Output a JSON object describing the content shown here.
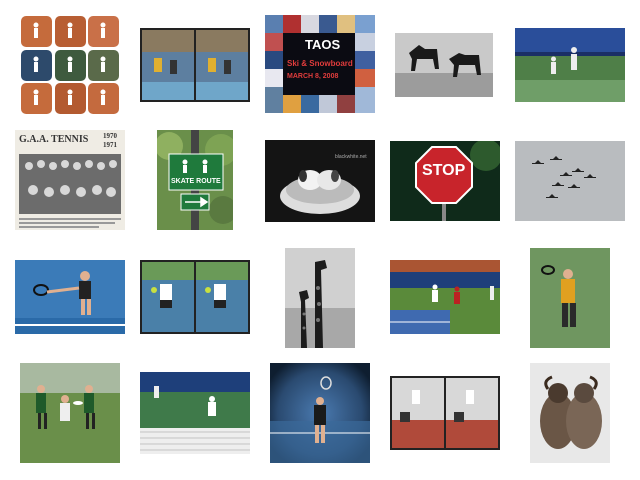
{
  "grid_title": "",
  "thumbnails": [
    {
      "id": "tennis-collage-clay"
    },
    {
      "id": "tennis-doubles-stereo"
    },
    {
      "id": "taos-poster-collage",
      "texts": {
        "main": "TAOS",
        "sub1": "Ski & Snowboard",
        "sub2": "MARCH 8, 2008"
      }
    },
    {
      "id": "two-horses-bw"
    },
    {
      "id": "tennis-smash-blue"
    },
    {
      "id": "gaa-tennis-yearbook",
      "texts": {
        "title": "G.A.A. TENNIS",
        "years1": "1970",
        "years2": "1971"
      }
    },
    {
      "id": "skate-route-sign",
      "texts": {
        "sign": "SKATE ROUTE"
      }
    },
    {
      "id": "puppies-in-bowl",
      "texts": {
        "watermark": "blackwhite.net"
      }
    },
    {
      "id": "stop-sign-night",
      "texts": {
        "sign": "STOP"
      }
    },
    {
      "id": "planes-formation"
    },
    {
      "id": "tennis-forehand-blue"
    },
    {
      "id": "tennis-volley-stereo"
    },
    {
      "id": "giraffes-bw"
    },
    {
      "id": "tennis-doubles-court"
    },
    {
      "id": "tennis-serve-green"
    },
    {
      "id": "frisbee-game"
    },
    {
      "id": "tennis-player-baseline"
    },
    {
      "id": "tennis-serve-vignette"
    },
    {
      "id": "tennis-stereo-net"
    },
    {
      "id": "sheep-pair"
    }
  ],
  "colors": {
    "clay": "#c56b3c",
    "court_blue": "#3b7bb8",
    "court_green": "#4f8a4a",
    "sky_gray": "#b9bcbf",
    "sign_green": "#1f7a3c",
    "stop_red": "#c8242b"
  }
}
